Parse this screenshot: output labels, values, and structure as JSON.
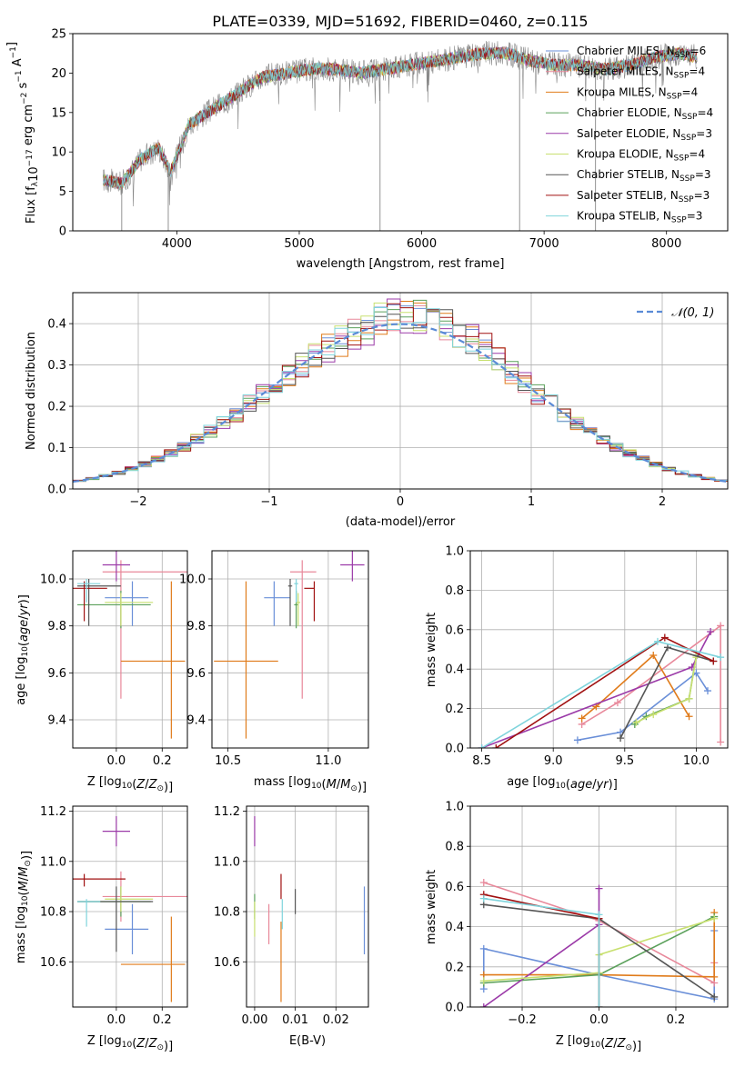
{
  "figure_title": "PLATE=0339, MJD=51692, FIBERID=0460, z=0.115",
  "colors": {
    "chabrier_miles": "#6a8fd8",
    "salpeter_miles": "#e8889a",
    "kroupa_miles": "#e07b1a",
    "chabrier_elodie": "#5aa05a",
    "salpeter_elodie": "#9b3aa8",
    "kroupa_elodie": "#c8e070",
    "chabrier_stelib": "#555555",
    "salpeter_stelib": "#a01010",
    "kroupa_stelib": "#7fd4dc",
    "spectrum": "#888888",
    "normal_curve": "#5b8bd6",
    "grid": "#b0b0b0"
  },
  "chart_data": [
    {
      "id": "spectrum",
      "type": "line",
      "title": "PLATE=0339, MJD=51692, FIBERID=0460, z=0.115",
      "xlabel": "wavelength [Angstrom, rest frame]",
      "ylabel": "Flux [f",
      "xlim": [
        3150,
        8500
      ],
      "ylim": [
        0,
        25
      ],
      "xticks": [
        4000,
        5000,
        6000,
        7000,
        8000
      ],
      "yticks": [
        0,
        5,
        10,
        15,
        20,
        25
      ],
      "grid": false,
      "legend_position": "upper-right",
      "spectrum_anchors": {
        "x": [
          3400,
          3550,
          3700,
          3850,
          3950,
          4100,
          4300,
          4500,
          4700,
          4900,
          5100,
          5300,
          5500,
          5700,
          5900,
          6100,
          6300,
          6500,
          6700,
          6900,
          7100,
          7300,
          7500,
          7700,
          7900,
          8100,
          8250
        ],
        "y": [
          6.5,
          6.0,
          9.0,
          10.5,
          7.5,
          13.5,
          15.5,
          17.5,
          19.5,
          20.0,
          20.5,
          20.5,
          20.0,
          20.5,
          21.0,
          21.5,
          22.0,
          22.5,
          22.5,
          21.5,
          21.0,
          21.0,
          20.5,
          21.0,
          22.0,
          22.5,
          22.0
        ]
      },
      "dips": [
        {
          "x": 3550,
          "y": 0
        },
        {
          "x": 3930,
          "y": 0
        },
        {
          "x": 5660,
          "y": 0
        },
        {
          "x": 6800,
          "y": 0
        },
        {
          "x": 7420,
          "y": 0
        }
      ],
      "legend": [
        {
          "label": "Chabrier MILES, N",
          "sub": "SSP",
          "value": "=6",
          "color_key": "chabrier_miles"
        },
        {
          "label": "Salpeter MILES, N",
          "sub": "SSP",
          "value": "=4",
          "color_key": "salpeter_miles"
        },
        {
          "label": "Kroupa MILES, N",
          "sub": "SSP",
          "value": "=4",
          "color_key": "kroupa_miles"
        },
        {
          "label": "Chabrier ELODIE, N",
          "sub": "SSP",
          "value": "=4",
          "color_key": "chabrier_elodie"
        },
        {
          "label": "Salpeter ELODIE, N",
          "sub": "SSP",
          "value": "=3",
          "color_key": "salpeter_elodie"
        },
        {
          "label": "Kroupa ELODIE, N",
          "sub": "SSP",
          "value": "=4",
          "color_key": "kroupa_elodie"
        },
        {
          "label": "Chabrier STELIB, N",
          "sub": "SSP",
          "value": "=3",
          "color_key": "chabrier_stelib"
        },
        {
          "label": "Salpeter STELIB, N",
          "sub": "SSP",
          "value": "=3",
          "color_key": "salpeter_stelib"
        },
        {
          "label": "Kroupa STELIB, N",
          "sub": "SSP",
          "value": "=3",
          "color_key": "kroupa_stelib"
        }
      ]
    },
    {
      "id": "residuals",
      "type": "line",
      "xlabel": "(data-model)/error",
      "ylabel": "Normed distribution",
      "xlim": [
        -2.5,
        2.5
      ],
      "ylim": [
        0,
        0.475
      ],
      "xticks": [
        -2,
        -1,
        0,
        1,
        2
      ],
      "yticks": [
        0.0,
        0.1,
        0.2,
        0.3,
        0.4
      ],
      "grid": true,
      "legend_position": "upper-right",
      "legend_label": "𝒩(0, 1)",
      "bin_width": 0.1,
      "hist_note": "step histograms of normalized residuals for the 9 models, jittered around the N(0,1) curve"
    },
    {
      "id": "age_vs_Z",
      "type": "scatter",
      "xlabel": "Z [log10(Z/Z⊙)]",
      "ylabel": "age  [log10(age/yr)]",
      "xlim": [
        -0.19,
        0.31
      ],
      "ylim": [
        9.28,
        10.12
      ],
      "xticks": [
        0.0,
        0.2
      ],
      "yticks": [
        9.4,
        9.6,
        9.8,
        10.0
      ],
      "grid": true,
      "points": [
        {
          "model": "chabrier_miles",
          "x": 0.07,
          "xerr": [
            0.12,
            0.07
          ],
          "y": 9.92,
          "yerr": [
            0.12,
            0.07
          ]
        },
        {
          "model": "salpeter_miles",
          "x": 0.02,
          "xerr": [
            0.08,
            0.3
          ],
          "y": 10.03,
          "yerr": [
            0.54,
            0.05
          ]
        },
        {
          "model": "kroupa_miles",
          "x": 0.24,
          "xerr": [
            0.22,
            0.06
          ],
          "y": 9.65,
          "yerr": [
            0.33,
            0.34
          ]
        },
        {
          "model": "chabrier_elodie",
          "x": 0.02,
          "xerr": [
            0.19,
            0.13
          ],
          "y": 9.89,
          "yerr": [
            0.1,
            0.06
          ]
        },
        {
          "model": "salpeter_elodie",
          "x": 0.0,
          "xerr": [
            0.06,
            0.06
          ],
          "y": 10.06,
          "yerr": [
            0.07,
            0.06
          ]
        },
        {
          "model": "kroupa_elodie",
          "x": 0.02,
          "xerr": [
            0.07,
            0.14
          ],
          "y": 9.9,
          "yerr": [
            0.1,
            0.04
          ]
        },
        {
          "model": "chabrier_stelib",
          "x": -0.12,
          "xerr": [
            0.05,
            0.14
          ],
          "y": 9.97,
          "yerr": [
            0.17,
            0.03
          ]
        },
        {
          "model": "salpeter_stelib",
          "x": -0.14,
          "xerr": [
            0.05,
            0.1
          ],
          "y": 9.96,
          "yerr": [
            0.14,
            0.03
          ]
        },
        {
          "model": "kroupa_stelib",
          "x": -0.13,
          "xerr": [
            0.04,
            0.06
          ],
          "y": 9.98,
          "yerr": [
            0.08,
            0.02
          ]
        }
      ]
    },
    {
      "id": "age_vs_mass",
      "type": "scatter",
      "xlabel": "mass [log10(M/M⊙)]",
      "ylabel": "",
      "xlim": [
        10.42,
        11.2
      ],
      "ylim": [
        9.28,
        10.12
      ],
      "xticks": [
        10.5,
        11.0
      ],
      "yticks": [
        9.4,
        9.6,
        9.8,
        10.0
      ],
      "grid": true,
      "points": [
        {
          "model": "chabrier_miles",
          "x": 10.73,
          "xerr": [
            0.05,
            0.08
          ],
          "y": 9.92,
          "yerr": [
            0.12,
            0.07
          ]
        },
        {
          "model": "salpeter_miles",
          "x": 10.87,
          "xerr": [
            0.06,
            0.07
          ],
          "y": 10.03,
          "yerr": [
            0.54,
            0.05
          ]
        },
        {
          "model": "kroupa_miles",
          "x": 10.59,
          "xerr": [
            0.16,
            0.16
          ],
          "y": 9.65,
          "yerr": [
            0.33,
            0.34
          ]
        },
        {
          "model": "chabrier_elodie",
          "x": 10.84,
          "xerr": [
            0.01,
            0.01
          ],
          "y": 9.89,
          "yerr": [
            0.1,
            0.06
          ]
        },
        {
          "model": "salpeter_elodie",
          "x": 11.12,
          "xerr": [
            0.06,
            0.06
          ],
          "y": 10.06,
          "yerr": [
            0.07,
            0.06
          ]
        },
        {
          "model": "kroupa_elodie",
          "x": 10.85,
          "xerr": [
            0.01,
            0.01
          ],
          "y": 9.9,
          "yerr": [
            0.1,
            0.04
          ]
        },
        {
          "model": "chabrier_stelib",
          "x": 10.81,
          "xerr": [
            0.01,
            0.01
          ],
          "y": 9.97,
          "yerr": [
            0.17,
            0.03
          ]
        },
        {
          "model": "salpeter_stelib",
          "x": 10.93,
          "xerr": [
            0.05,
            0.0
          ],
          "y": 9.96,
          "yerr": [
            0.14,
            0.03
          ]
        },
        {
          "model": "kroupa_stelib",
          "x": 10.84,
          "xerr": [
            0.01,
            0.01
          ],
          "y": 9.98,
          "yerr": [
            0.08,
            0.02
          ]
        }
      ]
    },
    {
      "id": "weight_vs_age",
      "type": "line",
      "xlabel": "age  [log10(age/yr)]",
      "ylabel": "mass weight",
      "xlim": [
        8.42,
        10.22
      ],
      "ylim": [
        0,
        1
      ],
      "xticks": [
        8.5,
        9.0,
        9.5,
        10.0
      ],
      "yticks": [
        0.0,
        0.2,
        0.4,
        0.6,
        0.8,
        1.0
      ],
      "grid": true,
      "series": [
        {
          "model": "chabrier_miles",
          "x": [
            9.17,
            9.47,
            10.0,
            10.08
          ],
          "y": [
            0.04,
            0.08,
            0.38,
            0.29
          ]
        },
        {
          "model": "salpeter_miles",
          "x": [
            9.2,
            9.45,
            10.17,
            10.17
          ],
          "y": [
            0.12,
            0.23,
            0.62,
            0.03
          ]
        },
        {
          "model": "kroupa_miles",
          "x": [
            9.2,
            9.3,
            9.7,
            9.95
          ],
          "y": [
            0.15,
            0.21,
            0.47,
            0.16
          ]
        },
        {
          "model": "chabrier_elodie",
          "x": [
            9.57,
            9.65,
            9.95,
            10.0
          ],
          "y": [
            0.12,
            0.16,
            0.25,
            0.47
          ]
        },
        {
          "model": "salpeter_elodie",
          "x": [
            8.5,
            9.97,
            10.1
          ],
          "y": [
            0.0,
            0.41,
            0.59
          ]
        },
        {
          "model": "kroupa_elodie",
          "x": [
            9.58,
            9.7,
            9.95,
            10.0
          ],
          "y": [
            0.13,
            0.17,
            0.25,
            0.46
          ]
        },
        {
          "model": "chabrier_stelib",
          "x": [
            9.47,
            9.8,
            10.12
          ],
          "y": [
            0.05,
            0.51,
            0.44
          ]
        },
        {
          "model": "salpeter_stelib",
          "x": [
            8.6,
            9.78,
            10.12
          ],
          "y": [
            0.0,
            0.56,
            0.44
          ]
        },
        {
          "model": "kroupa_stelib",
          "x": [
            8.5,
            9.73,
            10.17
          ],
          "y": [
            0.0,
            0.54,
            0.46
          ]
        }
      ]
    },
    {
      "id": "mass_vs_Z",
      "type": "scatter",
      "xlabel": "Z [log10(Z/Z⊙)]",
      "ylabel": "mass [log10(M/M⊙)]",
      "xlim": [
        -0.19,
        0.31
      ],
      "ylim": [
        10.42,
        11.22
      ],
      "xticks": [
        0.0,
        0.2
      ],
      "yticks": [
        10.6,
        10.8,
        11.0,
        11.2
      ],
      "grid": true,
      "points": [
        {
          "model": "chabrier_miles",
          "x": 0.07,
          "xerr": [
            0.12,
            0.07
          ],
          "y": 10.73,
          "yerr": [
            0.1,
            0.1
          ]
        },
        {
          "model": "salpeter_miles",
          "x": 0.02,
          "xerr": [
            0.08,
            0.3
          ],
          "y": 10.86,
          "yerr": [
            0.1,
            0.1
          ]
        },
        {
          "model": "kroupa_miles",
          "x": 0.24,
          "xerr": [
            0.22,
            0.06
          ],
          "y": 10.59,
          "yerr": [
            0.15,
            0.19
          ]
        },
        {
          "model": "chabrier_elodie",
          "x": 0.02,
          "xerr": [
            0.19,
            0.13
          ],
          "y": 10.84,
          "yerr": [
            0.06,
            0.06
          ]
        },
        {
          "model": "salpeter_elodie",
          "x": 0.0,
          "xerr": [
            0.06,
            0.06
          ],
          "y": 11.12,
          "yerr": [
            0.06,
            0.06
          ]
        },
        {
          "model": "kroupa_elodie",
          "x": 0.02,
          "xerr": [
            0.07,
            0.14
          ],
          "y": 10.85,
          "yerr": [
            0.05,
            0.05
          ]
        },
        {
          "model": "chabrier_stelib",
          "x": 0.0,
          "xerr": [
            0.17,
            0.16
          ],
          "y": 10.84,
          "yerr": [
            0.2,
            0.06
          ]
        },
        {
          "model": "salpeter_stelib",
          "x": -0.14,
          "xerr": [
            0.05,
            0.18
          ],
          "y": 10.93,
          "yerr": [
            0.03,
            0.02
          ]
        },
        {
          "model": "kroupa_stelib",
          "x": -0.13,
          "xerr": [
            0.04,
            0.06
          ],
          "y": 10.84,
          "yerr": [
            0.1,
            0.01
          ]
        }
      ]
    },
    {
      "id": "mass_vs_ebv",
      "type": "scatter",
      "xlabel": "E(B-V)",
      "ylabel": "",
      "xlim": [
        -0.002,
        0.028
      ],
      "ylim": [
        10.42,
        11.22
      ],
      "xticks": [
        0.0,
        0.01,
        0.02
      ],
      "yticks": [
        10.6,
        10.8,
        11.0,
        11.2
      ],
      "grid": true,
      "points": [
        {
          "model": "chabrier_miles",
          "x": 0.027,
          "xerr": [
            0,
            0
          ],
          "y": 10.76,
          "yerr": [
            0.13,
            0.14
          ]
        },
        {
          "model": "salpeter_miles",
          "x": 0.0035,
          "xerr": [
            0,
            0
          ],
          "y": 10.75,
          "yerr": [
            0.08,
            0.08
          ]
        },
        {
          "model": "kroupa_miles",
          "x": 0.0065,
          "xerr": [
            0,
            0
          ],
          "y": 10.64,
          "yerr": [
            0.2,
            0.12
          ]
        },
        {
          "model": "chabrier_elodie",
          "x": 0.0,
          "xerr": [
            0,
            0
          ],
          "y": 10.82,
          "yerr": [
            0.05,
            0.05
          ]
        },
        {
          "model": "salpeter_elodie",
          "x": 0.0,
          "xerr": [
            0,
            0
          ],
          "y": 11.12,
          "yerr": [
            0.06,
            0.06
          ]
        },
        {
          "model": "kroupa_elodie",
          "x": 0.0,
          "xerr": [
            0,
            0
          ],
          "y": 10.78,
          "yerr": [
            0.08,
            0.06
          ]
        },
        {
          "model": "chabrier_stelib",
          "x": 0.01,
          "xerr": [
            0,
            0
          ],
          "y": 10.84,
          "yerr": [
            0.05,
            0.05
          ]
        },
        {
          "model": "salpeter_stelib",
          "x": 0.0065,
          "xerr": [
            0,
            0
          ],
          "y": 10.9,
          "yerr": [
            0.05,
            0.05
          ]
        },
        {
          "model": "kroupa_stelib",
          "x": 0.0068,
          "xerr": [
            0,
            0
          ],
          "y": 10.8,
          "yerr": [
            0.07,
            0.05
          ]
        }
      ]
    },
    {
      "id": "weight_vs_Z",
      "type": "line",
      "xlabel": "Z [log10(Z/Z⊙)]",
      "ylabel": "mass weight",
      "xlim": [
        -0.335,
        0.335
      ],
      "ylim": [
        0,
        1
      ],
      "xticks": [
        -0.2,
        0.0,
        0.2
      ],
      "yticks": [
        0.0,
        0.2,
        0.4,
        0.6,
        0.8,
        1.0
      ],
      "grid": true,
      "series": [
        {
          "model": "chabrier_miles",
          "x": [
            -0.3,
            -0.3,
            0.0,
            0.3,
            0.3
          ],
          "y": [
            0.09,
            0.29,
            0.16,
            0.04,
            0.38
          ]
        },
        {
          "model": "salpeter_miles",
          "x": [
            -0.3,
            0.0,
            0.3,
            0.3
          ],
          "y": [
            0.62,
            0.43,
            0.12,
            0.22
          ]
        },
        {
          "model": "kroupa_miles",
          "x": [
            -0.3,
            0.0,
            0.3,
            0.3
          ],
          "y": [
            0.16,
            0.16,
            0.15,
            0.47
          ]
        },
        {
          "model": "chabrier_elodie",
          "x": [
            -0.3,
            0.0,
            0.3
          ],
          "y": [
            0.12,
            0.16,
            0.45
          ]
        },
        {
          "model": "salpeter_elodie",
          "x": [
            -0.3,
            0.0,
            0.0
          ],
          "y": [
            0.0,
            0.41,
            0.59
          ]
        },
        {
          "model": "kroupa_elodie",
          "x": [
            -0.3,
            0.0,
            0.0,
            0.3
          ],
          "y": [
            0.13,
            0.17,
            0.26,
            0.44
          ]
        },
        {
          "model": "chabrier_stelib",
          "x": [
            -0.3,
            0.0,
            0.3
          ],
          "y": [
            0.51,
            0.44,
            0.05
          ]
        },
        {
          "model": "salpeter_stelib",
          "x": [
            -0.3,
            0.0,
            0.0
          ],
          "y": [
            0.56,
            0.44,
            0.0
          ]
        },
        {
          "model": "kroupa_stelib",
          "x": [
            -0.3,
            0.0,
            0.0
          ],
          "y": [
            0.54,
            0.46,
            0.0
          ]
        }
      ]
    }
  ]
}
